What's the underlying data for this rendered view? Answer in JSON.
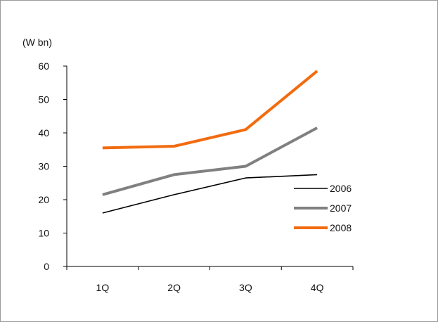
{
  "chart_data": {
    "type": "line",
    "title": "",
    "unit_label": "(W bn)",
    "xlabel": "",
    "ylabel": "",
    "categories": [
      "1Q",
      "2Q",
      "3Q",
      "4Q"
    ],
    "ylim": [
      0,
      60
    ],
    "yticks": [
      "0",
      "10",
      "20",
      "30",
      "40",
      "50",
      "60"
    ],
    "grid": false,
    "legend_position": "right",
    "series": [
      {
        "name": "2006",
        "values": [
          16.0,
          21.5,
          26.5,
          27.5
        ],
        "color": "#000000",
        "line_width": "thin"
      },
      {
        "name": "2007",
        "values": [
          21.5,
          27.5,
          30.0,
          41.5
        ],
        "color": "#808080",
        "line_width": "medium"
      },
      {
        "name": "2008",
        "values": [
          35.5,
          36.0,
          41.0,
          58.5
        ],
        "color": "#f26b0f",
        "line_width": "thick"
      }
    ]
  }
}
